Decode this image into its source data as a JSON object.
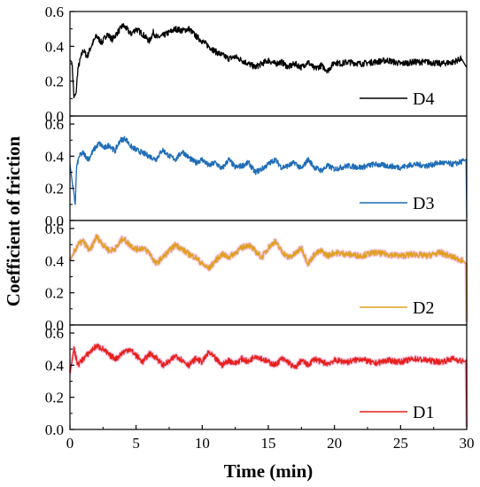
{
  "chart_data": {
    "type": "line",
    "xlabel": "Time (min)",
    "ylabel": "Coefficient of friction",
    "xlim": [
      0,
      30
    ],
    "x_ticks": [
      "0",
      "5",
      "10",
      "15",
      "20",
      "25",
      "30"
    ],
    "grid": false,
    "legend_placement": "bottom-right of each panel",
    "panels": [
      {
        "series_name": "D4",
        "color": "#000000",
        "halo": "none",
        "ylim": [
          0,
          0.6
        ],
        "y_ticks": [
          "0.0",
          "0.2",
          "0.4",
          "0.6"
        ],
        "x": [
          0,
          0.15,
          0.3,
          0.45,
          0.6,
          0.8,
          1.0,
          1.3,
          1.6,
          2.0,
          2.4,
          2.8,
          3.2,
          3.6,
          4.0,
          4.3,
          4.6,
          5.0,
          5.5,
          6.0,
          6.3,
          6.6,
          7.0,
          7.5,
          8.0,
          8.5,
          9.0,
          9.5,
          10.0,
          10.5,
          11.0,
          11.5,
          12.0,
          12.5,
          13.0,
          13.5,
          14.0,
          14.5,
          15.0,
          15.5,
          16.0,
          16.5,
          17.0,
          17.5,
          18.0,
          18.5,
          19.0,
          19.5,
          20.0,
          20.5,
          21.0,
          22.0,
          23.0,
          24.0,
          25.0,
          26.0,
          27.0,
          28.0,
          29.0,
          29.6,
          29.9,
          30.0
        ],
        "y": [
          0.32,
          0.31,
          0.11,
          0.12,
          0.27,
          0.33,
          0.38,
          0.34,
          0.4,
          0.46,
          0.42,
          0.47,
          0.44,
          0.48,
          0.52,
          0.5,
          0.47,
          0.5,
          0.47,
          0.43,
          0.48,
          0.45,
          0.46,
          0.48,
          0.5,
          0.49,
          0.5,
          0.46,
          0.43,
          0.4,
          0.37,
          0.35,
          0.33,
          0.34,
          0.32,
          0.3,
          0.28,
          0.3,
          0.32,
          0.3,
          0.31,
          0.28,
          0.3,
          0.28,
          0.31,
          0.27,
          0.29,
          0.26,
          0.31,
          0.3,
          0.31,
          0.3,
          0.31,
          0.32,
          0.3,
          0.31,
          0.31,
          0.3,
          0.31,
          0.33,
          0.29,
          0.28
        ]
      },
      {
        "series_name": "D3",
        "color": "#1f6db7",
        "halo": "none",
        "ylim": [
          0,
          0.65
        ],
        "y_ticks": [
          "0.0",
          "0.2",
          "0.4",
          "0.6"
        ],
        "x": [
          0,
          0.2,
          0.4,
          0.5,
          0.7,
          1.0,
          1.4,
          1.8,
          2.2,
          2.6,
          3.0,
          3.4,
          3.8,
          4.2,
          4.6,
          5.0,
          5.5,
          6.0,
          6.5,
          7.0,
          7.5,
          8.0,
          8.5,
          9.0,
          9.5,
          10.0,
          10.5,
          11.0,
          11.5,
          12.0,
          12.5,
          13.0,
          13.5,
          14.0,
          14.5,
          15.0,
          15.5,
          16.0,
          16.5,
          17.0,
          17.5,
          18.0,
          18.5,
          19.0,
          19.5,
          20.0,
          21.0,
          22.0,
          23.0,
          24.0,
          25.0,
          26.0,
          27.0,
          28.0,
          29.0,
          29.8,
          29.95,
          30.0
        ],
        "y": [
          0.35,
          0.22,
          0.1,
          0.33,
          0.4,
          0.42,
          0.38,
          0.44,
          0.48,
          0.45,
          0.47,
          0.43,
          0.5,
          0.51,
          0.46,
          0.44,
          0.42,
          0.4,
          0.38,
          0.44,
          0.4,
          0.38,
          0.43,
          0.39,
          0.36,
          0.38,
          0.34,
          0.36,
          0.32,
          0.38,
          0.33,
          0.34,
          0.36,
          0.3,
          0.32,
          0.35,
          0.38,
          0.33,
          0.34,
          0.36,
          0.32,
          0.38,
          0.33,
          0.31,
          0.34,
          0.32,
          0.34,
          0.33,
          0.35,
          0.34,
          0.33,
          0.35,
          0.34,
          0.36,
          0.35,
          0.37,
          0.38,
          0.02
        ]
      },
      {
        "series_name": "D2",
        "color": "#e0a020",
        "halo": "#f3c8e3",
        "ylim": [
          0,
          0.65
        ],
        "y_ticks": [
          "0.0",
          "0.2",
          "0.4",
          "0.6"
        ],
        "x": [
          0,
          0.3,
          0.6,
          1.0,
          1.5,
          2.0,
          2.5,
          3.0,
          3.5,
          4.0,
          4.5,
          5.0,
          5.5,
          6.0,
          6.5,
          7.0,
          7.5,
          8.0,
          8.5,
          9.0,
          9.5,
          10.0,
          10.5,
          11.0,
          11.5,
          12.0,
          12.5,
          13.0,
          13.5,
          14.0,
          14.5,
          15.0,
          15.5,
          16.0,
          16.5,
          17.0,
          17.5,
          18.0,
          18.5,
          19.0,
          19.5,
          20.0,
          21.0,
          22.0,
          23.0,
          24.0,
          25.0,
          26.0,
          27.0,
          28.0,
          29.0,
          29.7,
          29.95,
          30.0
        ],
        "y": [
          0.4,
          0.45,
          0.5,
          0.52,
          0.46,
          0.55,
          0.5,
          0.46,
          0.48,
          0.54,
          0.5,
          0.47,
          0.48,
          0.45,
          0.38,
          0.42,
          0.46,
          0.5,
          0.47,
          0.44,
          0.42,
          0.38,
          0.35,
          0.4,
          0.44,
          0.42,
          0.45,
          0.48,
          0.5,
          0.46,
          0.42,
          0.48,
          0.52,
          0.46,
          0.42,
          0.44,
          0.48,
          0.38,
          0.44,
          0.46,
          0.43,
          0.45,
          0.44,
          0.43,
          0.45,
          0.44,
          0.43,
          0.44,
          0.43,
          0.45,
          0.42,
          0.4,
          0.38,
          0.02
        ]
      },
      {
        "series_name": "D1",
        "color": "#e8201c",
        "halo": "#f3c8e3",
        "ylim": [
          0,
          0.65
        ],
        "y_ticks": [
          "0.0",
          "0.2",
          "0.4",
          "0.6"
        ],
        "x": [
          0,
          0.3,
          0.6,
          1.0,
          1.5,
          2.0,
          2.5,
          3.0,
          3.5,
          4.0,
          4.5,
          5.0,
          5.5,
          6.0,
          6.5,
          7.0,
          7.5,
          8.0,
          8.5,
          9.0,
          9.5,
          10.0,
          10.5,
          11.0,
          11.5,
          12.0,
          12.5,
          13.0,
          13.5,
          14.0,
          14.5,
          15.0,
          15.5,
          16.0,
          16.5,
          17.0,
          17.5,
          18.0,
          18.5,
          19.0,
          19.5,
          20.0,
          21.0,
          22.0,
          23.0,
          24.0,
          25.0,
          26.0,
          27.0,
          28.0,
          29.0,
          29.8,
          29.95,
          30.0
        ],
        "y": [
          0.35,
          0.5,
          0.4,
          0.44,
          0.48,
          0.52,
          0.5,
          0.46,
          0.44,
          0.48,
          0.5,
          0.46,
          0.42,
          0.47,
          0.45,
          0.4,
          0.42,
          0.46,
          0.43,
          0.4,
          0.44,
          0.42,
          0.48,
          0.44,
          0.4,
          0.43,
          0.41,
          0.44,
          0.42,
          0.46,
          0.44,
          0.42,
          0.4,
          0.44,
          0.42,
          0.38,
          0.43,
          0.4,
          0.44,
          0.42,
          0.41,
          0.43,
          0.42,
          0.44,
          0.41,
          0.43,
          0.42,
          0.44,
          0.43,
          0.42,
          0.44,
          0.42,
          0.43,
          0.02
        ]
      }
    ]
  }
}
